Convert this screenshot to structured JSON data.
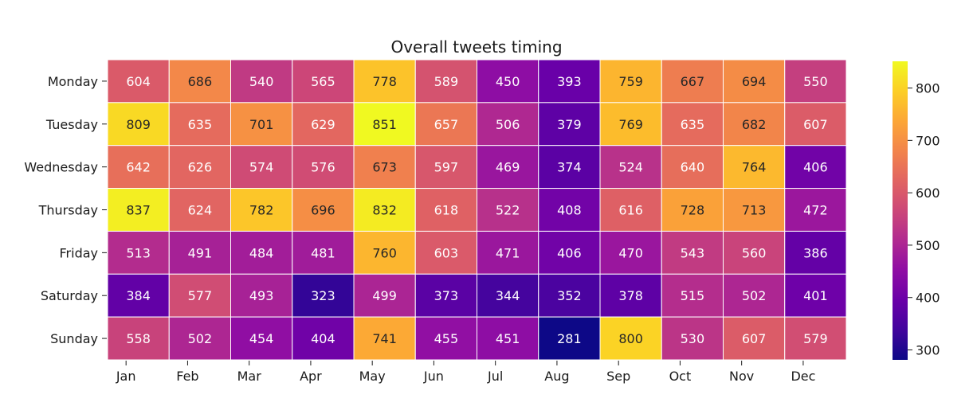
{
  "chart_data": {
    "type": "heatmap",
    "title": "Overall tweets timing",
    "xlabel": "",
    "ylabel": "",
    "columns": [
      "Jan",
      "Feb",
      "Mar",
      "Apr",
      "May",
      "Jun",
      "Jul",
      "Aug",
      "Sep",
      "Oct",
      "Nov",
      "Dec"
    ],
    "rows": [
      "Monday",
      "Tuesday",
      "Wednesday",
      "Thursday",
      "Friday",
      "Saturday",
      "Sunday"
    ],
    "values": [
      [
        604,
        686,
        540,
        565,
        778,
        589,
        450,
        393,
        759,
        667,
        694,
        550
      ],
      [
        809,
        635,
        701,
        629,
        851,
        657,
        506,
        379,
        769,
        635,
        682,
        607
      ],
      [
        642,
        626,
        574,
        576,
        673,
        597,
        469,
        374,
        524,
        640,
        764,
        406
      ],
      [
        837,
        624,
        782,
        696,
        832,
        618,
        522,
        408,
        616,
        728,
        713,
        472
      ],
      [
        513,
        491,
        484,
        481,
        760,
        603,
        471,
        406,
        470,
        543,
        560,
        386
      ],
      [
        384,
        577,
        493,
        323,
        499,
        373,
        344,
        352,
        378,
        515,
        502,
        401
      ],
      [
        558,
        502,
        454,
        404,
        741,
        455,
        451,
        281,
        800,
        530,
        607,
        579
      ]
    ],
    "colormap": "plasma",
    "vmin": 281,
    "vmax": 851,
    "colorbar_ticks": [
      300,
      400,
      500,
      600,
      700,
      800
    ],
    "annotations": true,
    "grid_line_color": "#ffffff"
  }
}
